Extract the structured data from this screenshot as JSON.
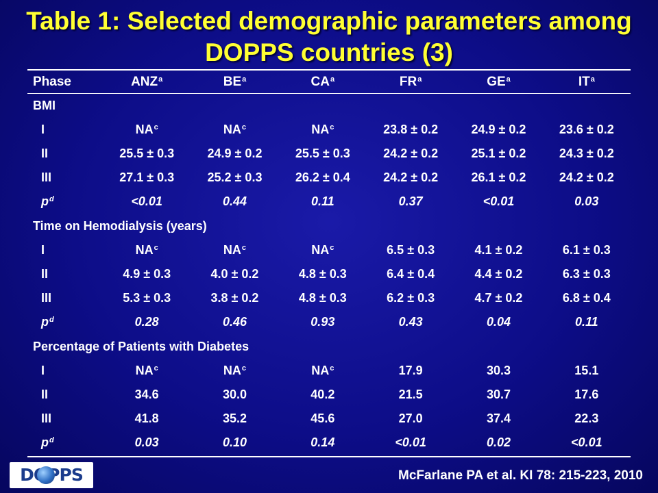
{
  "title": "Table 1: Selected demographic parameters among DOPPS countries (3)",
  "columns": [
    {
      "name": "ANZ",
      "sup": "a"
    },
    {
      "name": "BE",
      "sup": "a"
    },
    {
      "name": "CA",
      "sup": "a"
    },
    {
      "name": "FR",
      "sup": "a"
    },
    {
      "name": "GE",
      "sup": "a"
    },
    {
      "name": "IT",
      "sup": "a"
    }
  ],
  "phase_header": "Phase",
  "sections": [
    {
      "heading": "BMI",
      "rows": [
        {
          "label": "I",
          "values": [
            "NA|c",
            "NA|c",
            "NA|c",
            "23.8 ± 0.2",
            "24.9 ± 0.2",
            "23.6 ± 0.2"
          ]
        },
        {
          "label": "II",
          "values": [
            "25.5 ± 0.3",
            "24.9 ± 0.2",
            "25.5 ± 0.3",
            "24.2 ± 0.2",
            "25.1 ± 0.2",
            "24.3 ± 0.2"
          ]
        },
        {
          "label": "III",
          "values": [
            "27.1 ± 0.3",
            "25.2 ± 0.3",
            "26.2 ± 0.4",
            "24.2 ± 0.2",
            "26.1 ± 0.2",
            "24.2 ± 0.2"
          ]
        },
        {
          "label": "p|d",
          "values": [
            "<0.01",
            "0.44",
            "0.11",
            "0.37",
            "<0.01",
            "0.03"
          ],
          "italic": true
        }
      ]
    },
    {
      "heading": "Time on Hemodialysis (years)",
      "rows": [
        {
          "label": "I",
          "values": [
            "NA|c",
            "NA|c",
            "NA|c",
            "6.5 ± 0.3",
            "4.1 ± 0.2",
            "6.1 ± 0.3"
          ]
        },
        {
          "label": "II",
          "values": [
            "4.9 ± 0.3",
            "4.0 ± 0.2",
            "4.8 ± 0.3",
            "6.4 ± 0.4",
            "4.4 ± 0.2",
            "6.3 ± 0.3"
          ]
        },
        {
          "label": "III",
          "values": [
            "5.3 ± 0.3",
            "3.8 ± 0.2",
            "4.8 ± 0.3",
            "6.2 ± 0.3",
            "4.7 ± 0.2",
            "6.8 ± 0.4"
          ]
        },
        {
          "label": "p|d",
          "values": [
            "0.28",
            "0.46",
            "0.93",
            "0.43",
            "0.04",
            "0.11"
          ],
          "italic": true
        }
      ]
    },
    {
      "heading": "Percentage of Patients with Diabetes",
      "rows": [
        {
          "label": "I",
          "values": [
            "NA|c",
            "NA|c",
            "NA|c",
            "17.9",
            "30.3",
            "15.1"
          ]
        },
        {
          "label": "II",
          "values": [
            "34.6",
            "30.0",
            "40.2",
            "21.5",
            "30.7",
            "17.6"
          ]
        },
        {
          "label": "III",
          "values": [
            "41.8",
            "35.2",
            "45.6",
            "27.0",
            "37.4",
            "22.3"
          ]
        },
        {
          "label": "p|d",
          "values": [
            "0.03",
            "0.10",
            "0.14",
            "<0.01",
            "0.02",
            "<0.01"
          ],
          "italic": true
        }
      ]
    }
  ],
  "logo": {
    "text": "DOPPS",
    "icon": "globe-icon"
  },
  "citation": "McFarlane PA et al. KI 78: 215-223, 2010",
  "colors": {
    "background": "#0d0d88",
    "title": "#ffff33",
    "text": "#ffffff"
  }
}
